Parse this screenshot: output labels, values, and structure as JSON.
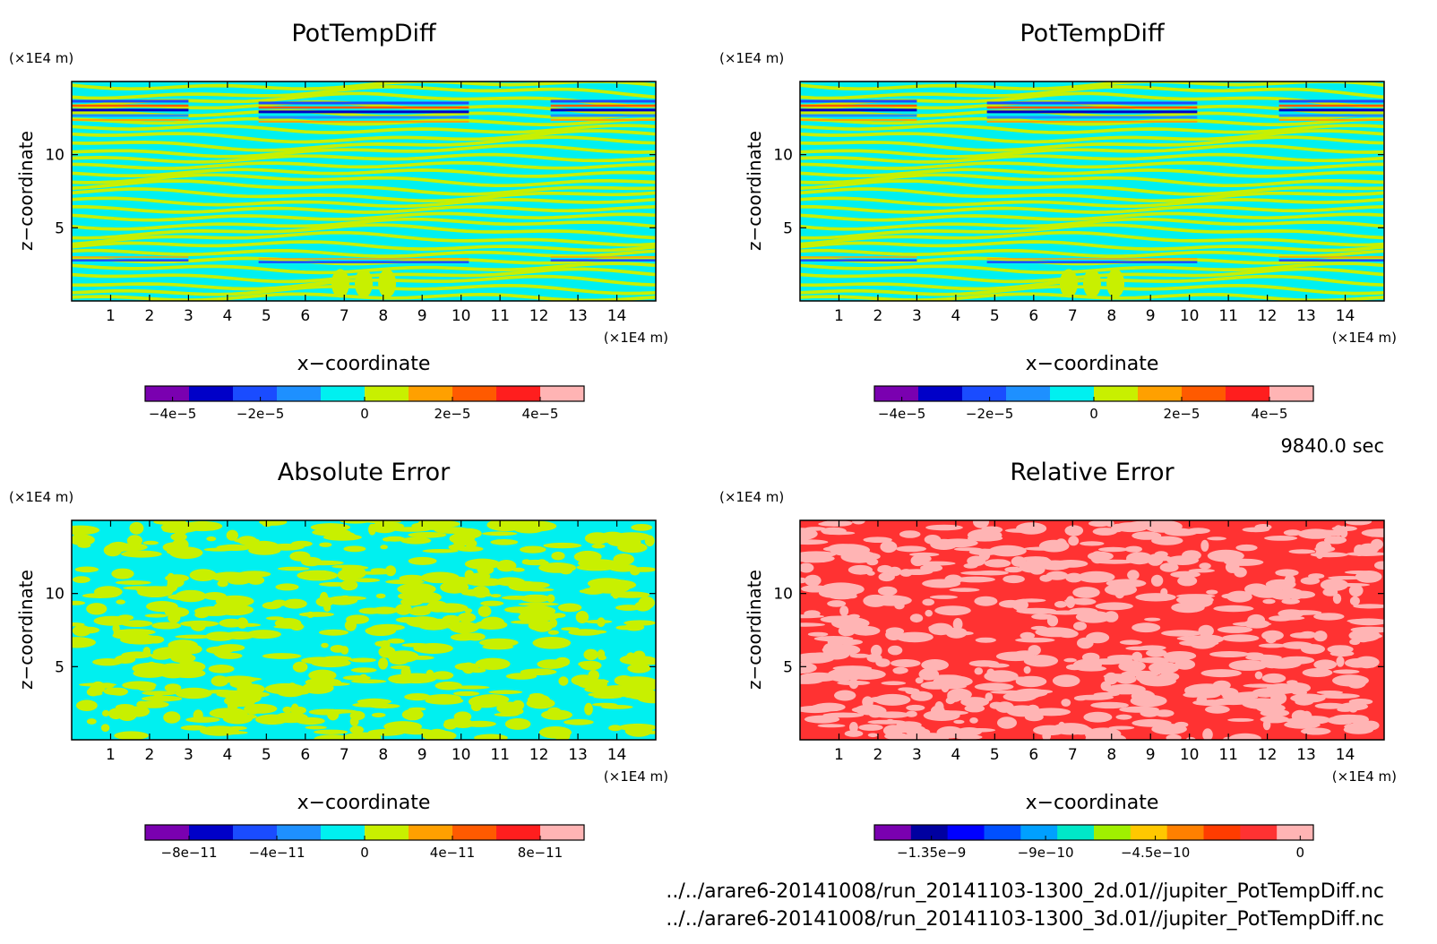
{
  "panels": [
    {
      "title": "PotTempDiff",
      "xlabel": "x−coordinate",
      "ylabel": "z−coordinate",
      "x_unit": "(×1E4 m)",
      "y_unit": "(×1E4 m)",
      "x_ticks": [
        "1",
        "2",
        "3",
        "4",
        "5",
        "6",
        "7",
        "8",
        "9",
        "10",
        "11",
        "12",
        "13",
        "14"
      ],
      "y_ticks": [
        "5",
        "10"
      ],
      "pattern": "stripes",
      "colorbar": {
        "colors": [
          "#7a00b0",
          "#0000c8",
          "#1a4cff",
          "#1e90ff",
          "#00f0f0",
          "#c8f000",
          "#ffa000",
          "#ff5a00",
          "#ff1e1e",
          "#ffb4b4"
        ],
        "labels": [
          "−4e−5",
          "−2e−5",
          "0",
          "2e−5",
          "4e−5"
        ]
      }
    },
    {
      "title": "PotTempDiff",
      "xlabel": "x−coordinate",
      "ylabel": "z−coordinate",
      "x_unit": "(×1E4 m)",
      "y_unit": "(×1E4 m)",
      "x_ticks": [
        "1",
        "2",
        "3",
        "4",
        "5",
        "6",
        "7",
        "8",
        "9",
        "10",
        "11",
        "12",
        "13",
        "14"
      ],
      "y_ticks": [
        "5",
        "10"
      ],
      "pattern": "stripes",
      "colorbar": {
        "colors": [
          "#7a00b0",
          "#0000c8",
          "#1a4cff",
          "#1e90ff",
          "#00f0f0",
          "#c8f000",
          "#ffa000",
          "#ff5a00",
          "#ff1e1e",
          "#ffb4b4"
        ],
        "labels": [
          "−4e−5",
          "−2e−5",
          "0",
          "2e−5",
          "4e−5"
        ]
      }
    },
    {
      "title": "Absolute Error",
      "xlabel": "x−coordinate",
      "ylabel": "z−coordinate",
      "x_unit": "(×1E4 m)",
      "y_unit": "(×1E4 m)",
      "x_ticks": [
        "1",
        "2",
        "3",
        "4",
        "5",
        "6",
        "7",
        "8",
        "9",
        "10",
        "11",
        "12",
        "13",
        "14"
      ],
      "y_ticks": [
        "5",
        "10"
      ],
      "pattern": "noise_cyan",
      "colorbar": {
        "colors": [
          "#7a00b0",
          "#0000c8",
          "#1a4cff",
          "#1e90ff",
          "#00f0f0",
          "#c8f000",
          "#ffa000",
          "#ff5a00",
          "#ff1e1e",
          "#ffb4b4"
        ],
        "labels": [
          "−8e−11",
          "−4e−11",
          "0",
          "4e−11",
          "8e−11"
        ]
      }
    },
    {
      "title": "Relative Error",
      "xlabel": "x−coordinate",
      "ylabel": "z−coordinate",
      "x_unit": "(×1E4 m)",
      "y_unit": "(×1E4 m)",
      "x_ticks": [
        "1",
        "2",
        "3",
        "4",
        "5",
        "6",
        "7",
        "8",
        "9",
        "10",
        "11",
        "12",
        "13",
        "14"
      ],
      "y_ticks": [
        "5",
        "10"
      ],
      "pattern": "noise_red",
      "colorbar": {
        "colors": [
          "#7a00b0",
          "#0000a0",
          "#0000ff",
          "#0050ff",
          "#00a0ff",
          "#00e8c8",
          "#a0f000",
          "#ffc800",
          "#ff8000",
          "#ff3c00",
          "#ff3232",
          "#ffb4b4"
        ],
        "labels": [
          "−1.35e−9",
          "−9e−10",
          "−4.5e−10",
          "0"
        ]
      }
    }
  ],
  "time_label": "9840.0 sec",
  "file_paths": [
    "../../arare6-20141008/run_20141103-1300_2d.01//jupiter_PotTempDiff.nc",
    "../../arare6-20141008/run_20141103-1300_3d.01//jupiter_PotTempDiff.nc"
  ],
  "chart_data": [
    {
      "type": "heatmap",
      "title": "PotTempDiff",
      "xlabel": "x−coordinate",
      "ylabel": "z−coordinate",
      "xlim": [
        0,
        15
      ],
      "ylim": [
        0,
        15
      ],
      "x_ticks": [
        1,
        2,
        3,
        4,
        5,
        6,
        7,
        8,
        9,
        10,
        11,
        12,
        13,
        14
      ],
      "y_ticks": [
        5,
        10
      ],
      "colorbar_ticks": [
        -4e-05,
        -2e-05,
        0,
        2e-05,
        4e-05
      ],
      "color_range": [
        -5e-05,
        5e-05
      ]
    },
    {
      "type": "heatmap",
      "title": "PotTempDiff",
      "xlabel": "x−coordinate",
      "ylabel": "z−coordinate",
      "xlim": [
        0,
        15
      ],
      "ylim": [
        0,
        15
      ],
      "x_ticks": [
        1,
        2,
        3,
        4,
        5,
        6,
        7,
        8,
        9,
        10,
        11,
        12,
        13,
        14
      ],
      "y_ticks": [
        5,
        10
      ],
      "colorbar_ticks": [
        -4e-05,
        -2e-05,
        0,
        2e-05,
        4e-05
      ],
      "color_range": [
        -5e-05,
        5e-05
      ]
    },
    {
      "type": "heatmap",
      "title": "Absolute Error",
      "xlabel": "x−coordinate",
      "ylabel": "z−coordinate",
      "xlim": [
        0,
        15
      ],
      "ylim": [
        0,
        15
      ],
      "x_ticks": [
        1,
        2,
        3,
        4,
        5,
        6,
        7,
        8,
        9,
        10,
        11,
        12,
        13,
        14
      ],
      "y_ticks": [
        5,
        10
      ],
      "colorbar_ticks": [
        -8e-11,
        -4e-11,
        0,
        4e-11,
        8e-11
      ],
      "color_range": [
        -1e-10,
        1e-10
      ]
    },
    {
      "type": "heatmap",
      "title": "Relative Error",
      "xlabel": "x−coordinate",
      "ylabel": "z−coordinate",
      "xlim": [
        0,
        15
      ],
      "ylim": [
        0,
        15
      ],
      "x_ticks": [
        1,
        2,
        3,
        4,
        5,
        6,
        7,
        8,
        9,
        10,
        11,
        12,
        13,
        14
      ],
      "y_ticks": [
        5,
        10
      ],
      "colorbar_ticks": [
        -1.35e-09,
        -9e-10,
        -4.5e-10,
        0
      ],
      "color_range": [
        -1.65e-09,
        1.5e-10
      ]
    }
  ]
}
